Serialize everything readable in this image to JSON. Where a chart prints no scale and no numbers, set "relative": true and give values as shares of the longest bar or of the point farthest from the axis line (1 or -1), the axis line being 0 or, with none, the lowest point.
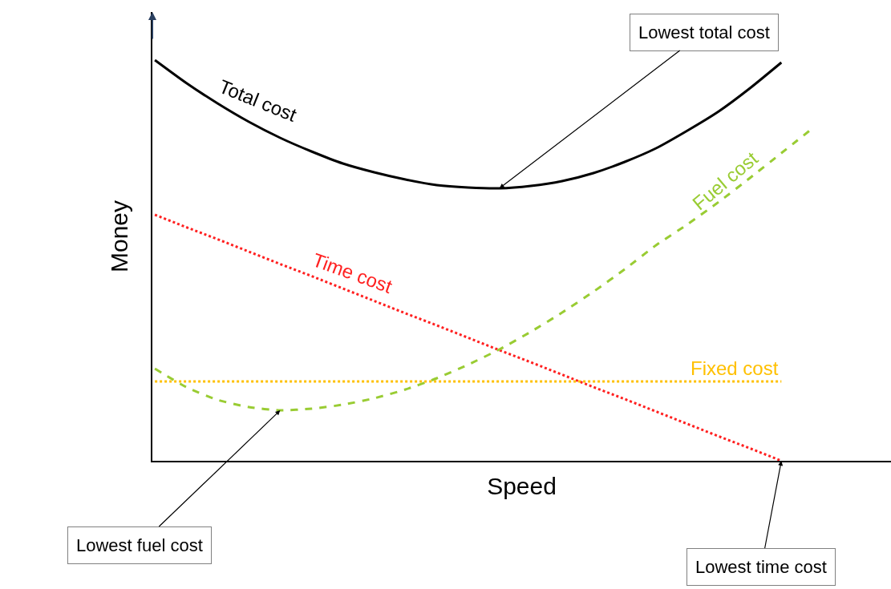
{
  "chart_data": {
    "type": "line",
    "relative": true,
    "xlabel": "Speed",
    "ylabel": "Money",
    "categories": [
      null,
      null,
      null,
      null,
      null,
      null,
      null,
      null,
      null,
      null,
      null,
      null,
      null,
      null,
      null,
      null,
      null,
      null,
      null,
      null,
      null,
      null
    ],
    "series": [
      {
        "name": "Total cost",
        "color": "#000000",
        "line_style": "solid",
        "values": [
          1.0,
          0.943,
          0.892,
          0.846,
          0.806,
          0.772,
          0.742,
          0.72,
          0.702,
          0.688,
          0.682,
          0.68,
          0.686,
          0.698,
          0.718,
          0.746,
          0.78,
          0.824,
          0.872,
          0.93,
          0.994,
          null
        ]
      },
      {
        "name": "Time cost",
        "color": "#ff2020",
        "line_style": "dotted",
        "values": [
          0.614,
          0.583,
          0.553,
          0.522,
          0.491,
          0.461,
          0.43,
          0.399,
          0.368,
          0.338,
          0.307,
          0.276,
          0.246,
          0.215,
          0.184,
          0.154,
          0.123,
          0.092,
          0.061,
          0.031,
          0,
          null
        ]
      },
      {
        "name": "Fuel cost",
        "color": "#99cc33",
        "line_style": "dashed",
        "values": [
          0.23,
          0.184,
          0.152,
          0.134,
          0.126,
          0.13,
          0.14,
          0.156,
          0.178,
          0.206,
          0.24,
          0.278,
          0.322,
          0.37,
          0.422,
          0.478,
          0.538,
          0.59,
          0.646,
          0.706,
          0.768,
          0.83
        ]
      },
      {
        "name": "Fixed cost",
        "color": "#ffc000",
        "line_style": "dotted",
        "values": [
          0.198,
          0.198,
          0.198,
          0.198,
          0.198,
          0.198,
          0.198,
          0.198,
          0.198,
          0.198,
          0.198,
          0.198,
          0.198,
          0.198,
          0.198,
          0.198,
          0.198,
          0.198,
          0.198,
          0.198,
          0.198,
          null
        ]
      }
    ],
    "annotations": [
      "Lowest total cost",
      "Lowest fuel cost",
      "Lowest time cost"
    ],
    "legend": false,
    "marker": "none",
    "tick_labels": false
  }
}
